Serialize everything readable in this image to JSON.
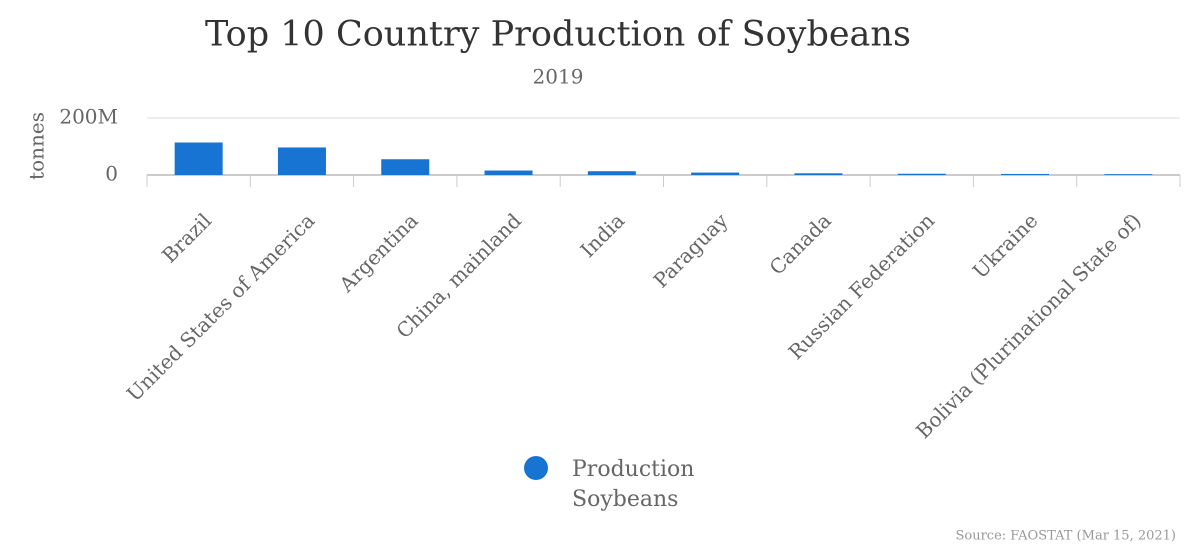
{
  "chart_data": {
    "type": "bar",
    "title": "Top 10 Country Production of Soybeans",
    "subtitle": "2019",
    "y_label": "tonnes",
    "categories": [
      "Brazil",
      "United States of America",
      "Argentina",
      "China, mainland",
      "India",
      "Paraguay",
      "Canada",
      "Russian Federation",
      "Ukraine",
      "Bolivia (Plurinational State of)"
    ],
    "series": [
      {
        "name": "Production Soybeans",
        "color": "#1874d2",
        "values": [
          114000000,
          96700000,
          55300000,
          15700000,
          13300000,
          8500000,
          6000000,
          4400000,
          3700000,
          2900000
        ]
      }
    ],
    "ylim": [
      0,
      200000000
    ],
    "yticks": [
      0,
      {
        "value": 200000000,
        "label": "200M"
      }
    ],
    "grid": true,
    "source": "Source: FAOSTAT (Mar 15, 2021)"
  }
}
